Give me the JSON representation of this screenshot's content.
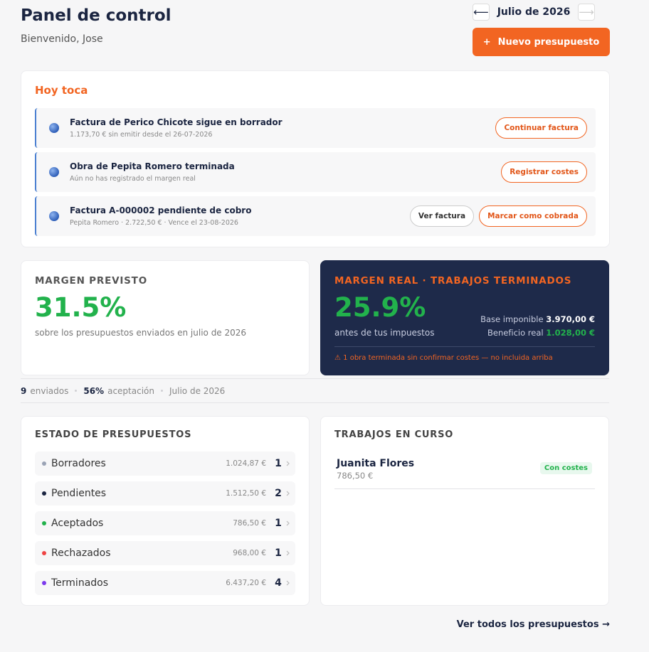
{
  "header": {
    "title": "Panel de control",
    "subtitle": "Bienvenido, Jose",
    "prev": "⟵",
    "month": "Julio de 2026",
    "next": "⟶",
    "new_button_icon": "+",
    "new_button": "Nuevo presupuesto"
  },
  "today": {
    "title": "Hoy toca",
    "items": [
      {
        "title": "Factura de Perico Chicote sigue en borrador",
        "detail": "1.173,70 € sin emitir desde el 26-07-2026",
        "actions": [
          "Continuar factura"
        ]
      },
      {
        "title": "Obra de Pepita Romero terminada",
        "detail": "Aún no has registrado el margen real",
        "actions": [
          "Registrar costes"
        ]
      },
      {
        "title": "Factura A-000002 pendiente de cobro",
        "detail": "Pepita Romero · 2.722,50 € · Vence el 23-08-2026",
        "actions": [
          "Ver factura",
          "Marcar como cobrada"
        ]
      }
    ]
  },
  "margin_forecast": {
    "label": "MARGEN PREVISTO",
    "value": "31.5%",
    "note": "sobre los presupuestos enviados en julio de 2026"
  },
  "margin_real": {
    "label": "MARGEN REAL · TRABAJOS TERMINADOS",
    "value": "25.9%",
    "note": "antes de tus impuestos",
    "base_label": "Base imponible",
    "base_value": "3.970,00 €",
    "profit_label": "Beneficio real",
    "profit_value": "1.028,00 €",
    "warning_icon": "⚠",
    "warning": "1 obra terminada sin confirmar costes — no incluida arriba"
  },
  "stats": {
    "sent_count": "9",
    "sent_label": "enviados",
    "acceptance_value": "56%",
    "acceptance_label": "aceptación",
    "period": "Julio de 2026"
  },
  "quote_status": {
    "title": "ESTADO DE PRESUPUESTOS",
    "rows": [
      {
        "label": "Borradores",
        "amount": "1.024,87 €",
        "count": "1",
        "color": "#9aa3b5"
      },
      {
        "label": "Pendientes",
        "amount": "1.512,50 €",
        "count": "2",
        "color": "#1b2541"
      },
      {
        "label": "Aceptados",
        "amount": "786,50 €",
        "count": "1",
        "color": "#22b24c"
      },
      {
        "label": "Rechazados",
        "amount": "968,00 €",
        "count": "1",
        "color": "#ef4444"
      },
      {
        "label": "Terminados",
        "amount": "6.437,20 €",
        "count": "4",
        "color": "#7c3aed"
      }
    ]
  },
  "jobs": {
    "title": "TRABAJOS EN CURSO",
    "items": [
      {
        "name": "Juanita Flores",
        "amount": "786,50 €",
        "badge": "Con costes"
      }
    ]
  },
  "footer_link": "Ver todos los presupuestos →"
}
